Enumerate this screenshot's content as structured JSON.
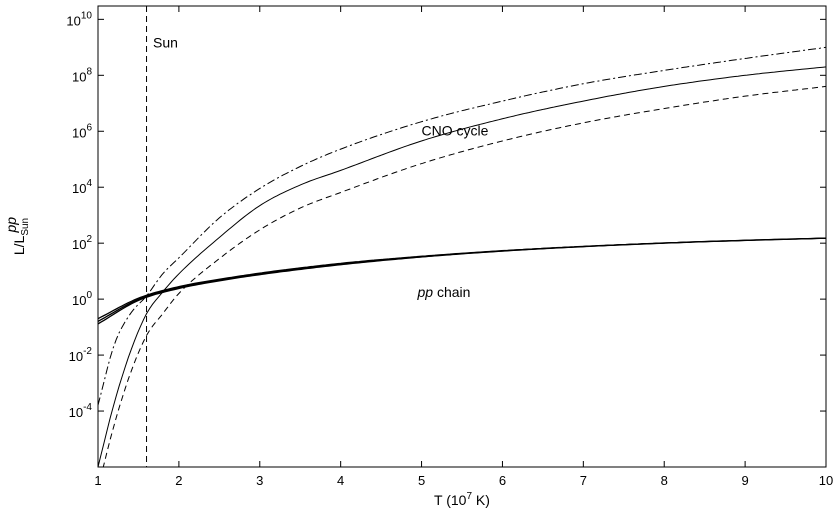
{
  "chart_data": {
    "type": "line",
    "xlabel": "T (10^7 K)",
    "xlabel_parts": {
      "pre": "T (10",
      "sup": "7",
      "post": " K)"
    },
    "ylabel_parts": {
      "base": "L/L",
      "sup": "pp",
      "sub": "Sun"
    },
    "xlim": [
      1,
      10
    ],
    "ylim": [
      1e-06,
      30000000000.0
    ],
    "yscale": "log",
    "grid": false,
    "legend": "none",
    "x_ticks": [
      1,
      2,
      3,
      4,
      5,
      6,
      7,
      8,
      9,
      10
    ],
    "y_ticks": [
      {
        "value": 0.0001,
        "base": "10",
        "exp": "-4"
      },
      {
        "value": 0.01,
        "base": "10",
        "exp": "-2"
      },
      {
        "value": 1,
        "base": "10",
        "exp": "0"
      },
      {
        "value": 100.0,
        "base": "10",
        "exp": "2"
      },
      {
        "value": 10000.0,
        "base": "10",
        "exp": "4"
      },
      {
        "value": 1000000.0,
        "base": "10",
        "exp": "6"
      },
      {
        "value": 100000000.0,
        "base": "10",
        "exp": "8"
      },
      {
        "value": 10000000000.0,
        "base": "10",
        "exp": "10"
      }
    ],
    "series": [
      {
        "style": "dashdot",
        "width": 1,
        "x": [
          1,
          1.2,
          1.4,
          1.6,
          1.8,
          2,
          2.5,
          3,
          3.5,
          4,
          5,
          6,
          7,
          8,
          9,
          10
        ],
        "y": [
          0.00016,
          0.023,
          0.3,
          1.3,
          8,
          30,
          800,
          9000,
          55000.0,
          230000.0,
          2200000.0,
          12000000.0,
          50000000.0,
          150000000.0,
          400000000.0,
          1000000000.0
        ]
      },
      {
        "style": "solid",
        "width": 1,
        "x": [
          1,
          1.2,
          1.4,
          1.6,
          1.8,
          2,
          2.5,
          3,
          3.5,
          4,
          5,
          6,
          7,
          8,
          9,
          10
        ],
        "y": [
          1e-06,
          0.00019,
          0.013,
          0.3,
          1.8,
          8,
          160,
          2200,
          12000.0,
          40000.0,
          450000.0,
          2800000.0,
          12000000.0,
          40000000.0,
          100000000.0,
          200000000.0
        ]
      },
      {
        "style": "dashed",
        "width": 1,
        "x": [
          1,
          1.2,
          1.4,
          1.6,
          1.8,
          2,
          2.5,
          3,
          3.5,
          4,
          5,
          6,
          7,
          8,
          9,
          10
        ],
        "y": [
          1.8e-07,
          3.2e-05,
          0.0022,
          0.05,
          0.3,
          1.6,
          28,
          300,
          1800,
          6500,
          70000.0,
          450000.0,
          2000000.0,
          6500000.0,
          18000000.0,
          40000000.0
        ]
      },
      {
        "style": "solid",
        "width": 1.3,
        "x": [
          1,
          1.5,
          2,
          2.5,
          3,
          4,
          5,
          6,
          7,
          8,
          9,
          10
        ],
        "y": [
          0.13,
          0.9,
          2.4,
          4.5,
          7.5,
          17,
          32,
          52,
          75,
          100,
          125,
          150
        ]
      },
      {
        "style": "solid",
        "width": 1.3,
        "x": [
          1,
          1.5,
          2,
          2.5,
          3,
          4,
          5,
          6,
          7,
          8,
          9,
          10
        ],
        "y": [
          0.16,
          0.98,
          2.6,
          4.8,
          8,
          18,
          33,
          53,
          76,
          101,
          126,
          151
        ]
      },
      {
        "style": "solid",
        "width": 1.3,
        "x": [
          1,
          1.5,
          2,
          2.5,
          3,
          4,
          5,
          6,
          7,
          8,
          9,
          10
        ],
        "y": [
          0.2,
          1.08,
          2.8,
          5.1,
          8.5,
          19,
          34,
          54,
          77,
          102,
          127,
          152
        ]
      }
    ],
    "vline": {
      "x": 1.6,
      "style": "dashed"
    },
    "annotations": [
      {
        "text": "Sun",
        "x": 1.68,
        "y": 1000000000.0
      },
      {
        "text": "CNO cycle",
        "x": 5.0,
        "y": 700000.0
      },
      {
        "italic": "pp",
        "text": " chain",
        "x": 4.95,
        "y": 1.2
      }
    ]
  }
}
